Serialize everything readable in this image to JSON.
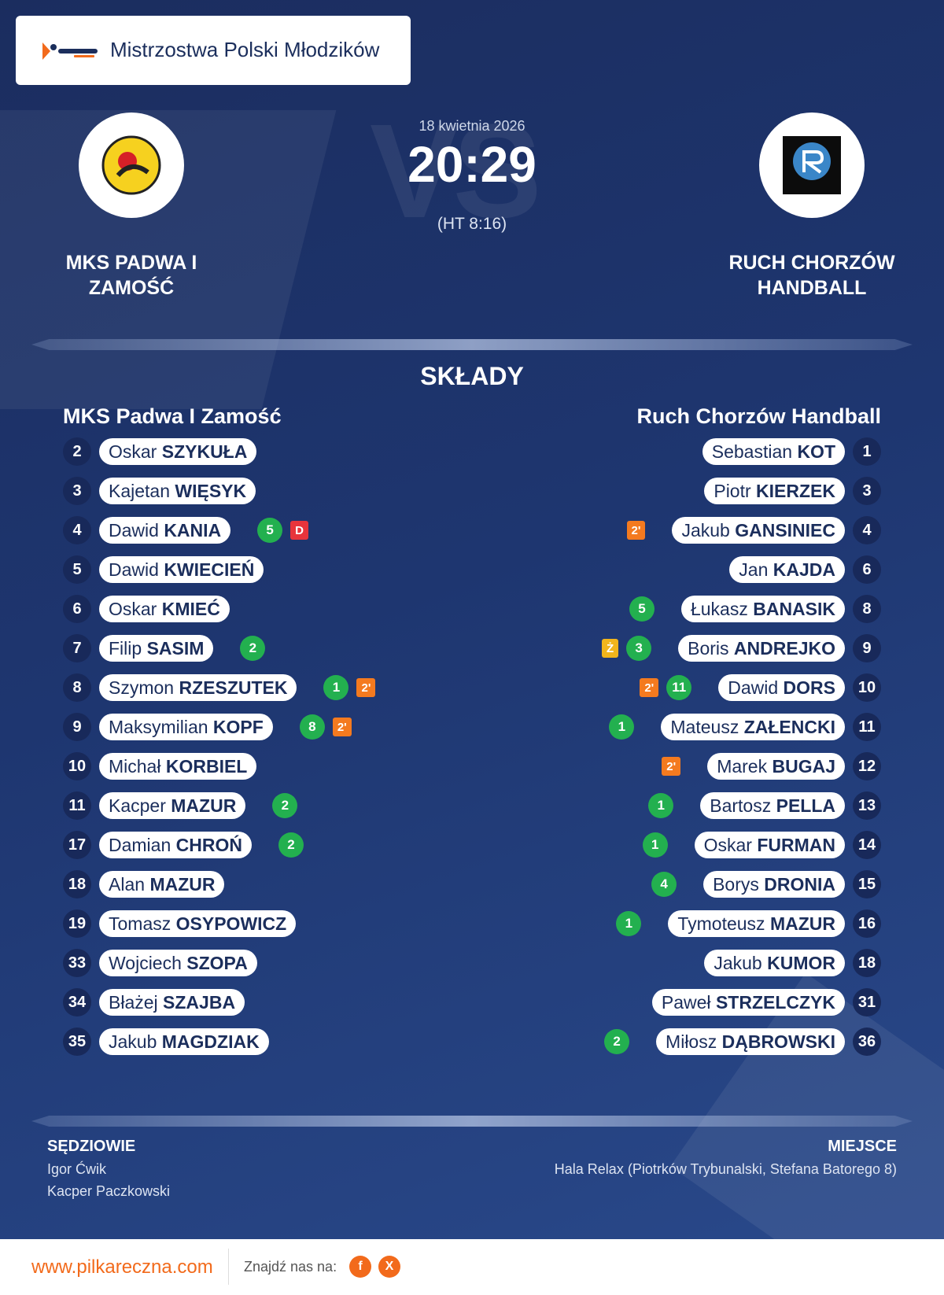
{
  "header": {
    "competition": "Mistrzostwa Polski Młodzików"
  },
  "match": {
    "date": "18 kwietnia 2026",
    "score": "20:29",
    "halftime": "(HT 8:16)",
    "watermark": "VS"
  },
  "lineups": {
    "title": "SKŁADY"
  },
  "home": {
    "name": "MKS PADWA I ZAMOŚĆ",
    "lineup_title": "MKS Padwa I Zamość",
    "players": [
      {
        "number": 2,
        "first": "Oskar",
        "last": "SZYKUŁA",
        "goals": null,
        "cards": []
      },
      {
        "number": 3,
        "first": "Kajetan",
        "last": "WIĘSYK",
        "goals": null,
        "cards": []
      },
      {
        "number": 4,
        "first": "Dawid",
        "last": "KANIA",
        "goals": 5,
        "cards": [
          {
            "label": "D",
            "color": "#e8343c"
          }
        ]
      },
      {
        "number": 5,
        "first": "Dawid",
        "last": "KWIECIEŃ",
        "goals": null,
        "cards": []
      },
      {
        "number": 6,
        "first": "Oskar",
        "last": "KMIEĆ",
        "goals": null,
        "cards": []
      },
      {
        "number": 7,
        "first": "Filip",
        "last": "SASIM",
        "goals": 2,
        "cards": []
      },
      {
        "number": 8,
        "first": "Szymon",
        "last": "RZESZUTEK",
        "goals": 1,
        "cards": [
          {
            "label": "2'",
            "color": "#f47a1f"
          }
        ]
      },
      {
        "number": 9,
        "first": "Maksymilian",
        "last": "KOPF",
        "goals": 8,
        "cards": [
          {
            "label": "2'",
            "color": "#f47a1f"
          }
        ]
      },
      {
        "number": 10,
        "first": "Michał",
        "last": "KORBIEL",
        "goals": null,
        "cards": []
      },
      {
        "number": 11,
        "first": "Kacper",
        "last": "MAZUR",
        "goals": 2,
        "cards": []
      },
      {
        "number": 17,
        "first": "Damian",
        "last": "CHROŃ",
        "goals": 2,
        "cards": []
      },
      {
        "number": 18,
        "first": "Alan",
        "last": "MAZUR",
        "goals": null,
        "cards": []
      },
      {
        "number": 19,
        "first": "Tomasz",
        "last": "OSYPOWICZ",
        "goals": null,
        "cards": []
      },
      {
        "number": 33,
        "first": "Wojciech",
        "last": "SZOPA",
        "goals": null,
        "cards": []
      },
      {
        "number": 34,
        "first": "Błażej",
        "last": "SZAJBA",
        "goals": null,
        "cards": []
      },
      {
        "number": 35,
        "first": "Jakub",
        "last": "MAGDZIAK",
        "goals": null,
        "cards": []
      }
    ]
  },
  "away": {
    "name": "RUCH CHORZÓW HANDBALL",
    "lineup_title": "Ruch Chorzów Handball",
    "players": [
      {
        "number": 1,
        "first": "Sebastian",
        "last": "KOT",
        "goals": null,
        "cards": []
      },
      {
        "number": 3,
        "first": "Piotr",
        "last": "KIERZEK",
        "goals": null,
        "cards": []
      },
      {
        "number": 4,
        "first": "Jakub",
        "last": "GANSINIEC",
        "goals": null,
        "cards": [
          {
            "label": "2'",
            "color": "#f47a1f"
          }
        ]
      },
      {
        "number": 6,
        "first": "Jan",
        "last": "KAJDA",
        "goals": null,
        "cards": []
      },
      {
        "number": 8,
        "first": "Łukasz",
        "last": "BANASIK",
        "goals": 5,
        "cards": []
      },
      {
        "number": 9,
        "first": "Boris",
        "last": "ANDREJKO",
        "goals": 3,
        "cards": [
          {
            "label": "Ż",
            "color": "#f2b51c"
          }
        ]
      },
      {
        "number": 10,
        "first": "Dawid",
        "last": "DORS",
        "goals": 11,
        "cards": [
          {
            "label": "2'",
            "color": "#f47a1f"
          }
        ]
      },
      {
        "number": 11,
        "first": "Mateusz",
        "last": "ZAŁENCKI",
        "goals": 1,
        "cards": []
      },
      {
        "number": 12,
        "first": "Marek",
        "last": "BUGAJ",
        "goals": null,
        "cards": [
          {
            "label": "2'",
            "color": "#f47a1f"
          }
        ]
      },
      {
        "number": 13,
        "first": "Bartosz",
        "last": "PELLA",
        "goals": 1,
        "cards": []
      },
      {
        "number": 14,
        "first": "Oskar",
        "last": "FURMAN",
        "goals": 1,
        "cards": []
      },
      {
        "number": 15,
        "first": "Borys",
        "last": "DRONIA",
        "goals": 4,
        "cards": []
      },
      {
        "number": 16,
        "first": "Tymoteusz",
        "last": "MAZUR",
        "goals": 1,
        "cards": []
      },
      {
        "number": 18,
        "first": "Jakub",
        "last": "KUMOR",
        "goals": null,
        "cards": []
      },
      {
        "number": 31,
        "first": "Paweł",
        "last": "STRZELCZYK",
        "goals": null,
        "cards": []
      },
      {
        "number": 36,
        "first": "Miłosz",
        "last": "DĄBROWSKI",
        "goals": 2,
        "cards": []
      }
    ]
  },
  "footer": {
    "referees_label": "SĘDZIOWIE",
    "referees": [
      "Igor Ćwik",
      "Kacper Paczkowski"
    ],
    "venue_label": "MIEJSCE",
    "venue": "Hala Relax (Piotrków Trybunalski, Stefana Batorego 8)"
  },
  "bottom": {
    "url": "www.pilkareczna.com",
    "social_label": "Znajdź nas na:",
    "social": [
      "f",
      "X"
    ]
  }
}
